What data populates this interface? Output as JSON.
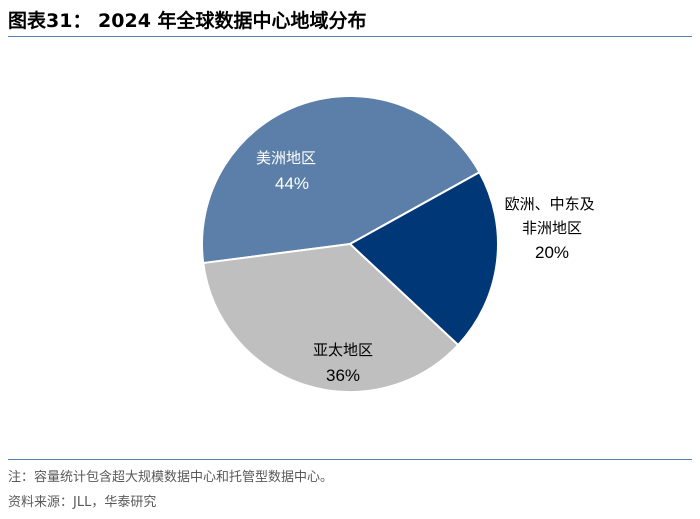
{
  "title": "图表31： 2024 年全球数据中心地域分布",
  "note": "注：容量统计包含超大规模数据中心和托管型数据中心。",
  "source": "资料来源：JLL，华泰研究",
  "chart_data": {
    "type": "pie",
    "title": "2024 年全球数据中心地域分布",
    "slices": [
      {
        "label": "美洲地区",
        "value": 44,
        "value_label": "44%",
        "color": "#5b7fa8",
        "label_color": "#ffffff"
      },
      {
        "label": "欧洲、中东及非洲地区",
        "value": 20,
        "value_label": "20%",
        "color": "#003777",
        "label_color": "#000000"
      },
      {
        "label": "亚太地区",
        "value": 36,
        "value_label": "36%",
        "color": "#bfbfbf",
        "label_color": "#000000"
      }
    ]
  }
}
